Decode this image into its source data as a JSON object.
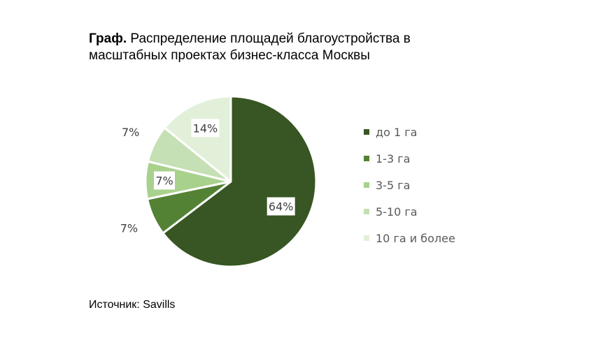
{
  "title": {
    "prefix": "Граф.",
    "text": "Распределение площадей благоустройства в масштабных проектах бизнес-класса Москвы"
  },
  "source": "Источник: Savills",
  "chart_data": {
    "type": "pie",
    "categories": [
      "до 1 га",
      "1-3 га",
      "3-5 га",
      "5-10 га",
      "10 га и более"
    ],
    "values": [
      64,
      7,
      7,
      7,
      14
    ],
    "data_labels": [
      "64%",
      "7%",
      "7%",
      "7%",
      "14%"
    ],
    "colors": [
      "#375623",
      "#548235",
      "#A9D18E",
      "#C5E0B4",
      "#E2F0D9"
    ],
    "legend_position": "right"
  }
}
